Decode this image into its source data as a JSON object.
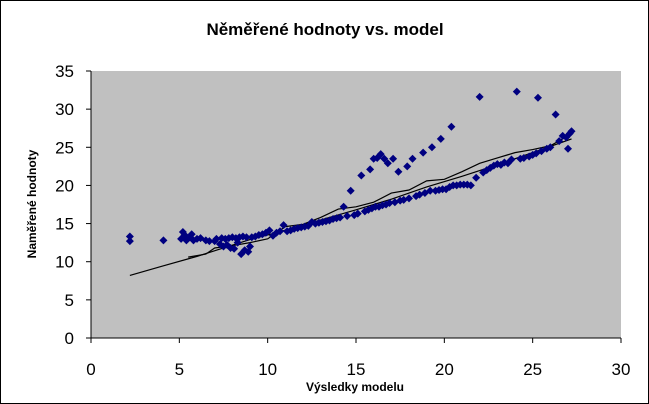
{
  "chart_data": {
    "type": "scatter",
    "title": "Něměřené hodnoty vs. model",
    "xlabel": "Výsledky modelu",
    "ylabel": "Naměřené hodnoty",
    "xlim": [
      0,
      30
    ],
    "ylim": [
      0,
      35
    ],
    "xticks": [
      0,
      5,
      10,
      15,
      20,
      25,
      30
    ],
    "yticks": [
      0,
      5,
      10,
      15,
      20,
      25,
      30,
      35
    ],
    "grid": false,
    "legend": "none",
    "plot_background": "#c0c0c0",
    "series": [
      {
        "type": "scatter",
        "marker": "diamond",
        "color": "#000080",
        "points": [
          [
            2.2,
            13.3
          ],
          [
            2.2,
            12.7
          ],
          [
            4.1,
            12.8
          ],
          [
            5.1,
            13.0
          ],
          [
            5.2,
            13.9
          ],
          [
            5.3,
            13.5
          ],
          [
            5.4,
            12.8
          ],
          [
            5.6,
            13.2
          ],
          [
            5.7,
            13.6
          ],
          [
            5.8,
            12.8
          ],
          [
            6.0,
            13.0
          ],
          [
            6.2,
            13.1
          ],
          [
            6.5,
            12.8
          ],
          [
            6.7,
            12.7
          ],
          [
            7.0,
            12.7
          ],
          [
            7.1,
            13.0
          ],
          [
            7.3,
            12.3
          ],
          [
            7.4,
            13.1
          ],
          [
            7.5,
            12.0
          ],
          [
            7.6,
            13.0
          ],
          [
            7.7,
            12.2
          ],
          [
            7.8,
            13.1
          ],
          [
            7.9,
            11.8
          ],
          [
            8.0,
            13.2
          ],
          [
            8.1,
            11.7
          ],
          [
            8.2,
            13.1
          ],
          [
            8.3,
            12.5
          ],
          [
            8.4,
            13.2
          ],
          [
            8.5,
            11.0
          ],
          [
            8.6,
            13.3
          ],
          [
            8.7,
            11.5
          ],
          [
            8.8,
            13.2
          ],
          [
            8.9,
            11.3
          ],
          [
            9.0,
            12.0
          ],
          [
            9.1,
            13.2
          ],
          [
            9.3,
            13.3
          ],
          [
            9.5,
            13.5
          ],
          [
            9.7,
            13.6
          ],
          [
            9.9,
            13.8
          ],
          [
            10.1,
            14.1
          ],
          [
            10.3,
            13.4
          ],
          [
            10.5,
            13.8
          ],
          [
            10.7,
            14.0
          ],
          [
            10.9,
            14.8
          ],
          [
            11.1,
            14.0
          ],
          [
            11.3,
            14.1
          ],
          [
            11.5,
            14.3
          ],
          [
            11.7,
            14.4
          ],
          [
            11.9,
            14.5
          ],
          [
            12.1,
            14.6
          ],
          [
            12.3,
            14.7
          ],
          [
            12.5,
            15.2
          ],
          [
            12.7,
            15.0
          ],
          [
            12.9,
            15.1
          ],
          [
            13.1,
            15.2
          ],
          [
            13.3,
            15.3
          ],
          [
            13.5,
            15.4
          ],
          [
            13.7,
            15.6
          ],
          [
            13.9,
            15.7
          ],
          [
            14.1,
            15.8
          ],
          [
            14.3,
            17.2
          ],
          [
            14.5,
            16.0
          ],
          [
            14.7,
            19.3
          ],
          [
            14.9,
            16.1
          ],
          [
            15.1,
            16.3
          ],
          [
            15.3,
            21.3
          ],
          [
            15.5,
            16.6
          ],
          [
            15.7,
            16.8
          ],
          [
            15.8,
            22.1
          ],
          [
            15.9,
            17.0
          ],
          [
            16.0,
            23.5
          ],
          [
            16.1,
            17.2
          ],
          [
            16.2,
            23.6
          ],
          [
            16.3,
            17.2
          ],
          [
            16.4,
            24.1
          ],
          [
            16.5,
            17.4
          ],
          [
            16.6,
            23.5
          ],
          [
            16.7,
            17.5
          ],
          [
            16.8,
            22.9
          ],
          [
            16.9,
            17.7
          ],
          [
            17.1,
            23.5
          ],
          [
            17.2,
            17.8
          ],
          [
            17.4,
            21.8
          ],
          [
            17.5,
            18.0
          ],
          [
            17.7,
            18.1
          ],
          [
            17.9,
            22.5
          ],
          [
            18.0,
            18.3
          ],
          [
            18.2,
            23.5
          ],
          [
            18.4,
            18.6
          ],
          [
            18.6,
            18.8
          ],
          [
            18.8,
            24.3
          ],
          [
            18.9,
            19.0
          ],
          [
            19.2,
            19.3
          ],
          [
            19.3,
            25.0
          ],
          [
            19.5,
            19.3
          ],
          [
            19.7,
            19.4
          ],
          [
            19.8,
            26.1
          ],
          [
            19.9,
            19.5
          ],
          [
            20.1,
            19.5
          ],
          [
            20.3,
            19.8
          ],
          [
            20.4,
            27.7
          ],
          [
            20.5,
            20.0
          ],
          [
            20.7,
            20.0
          ],
          [
            20.9,
            20.1
          ],
          [
            21.1,
            20.1
          ],
          [
            21.3,
            20.1
          ],
          [
            21.5,
            20.0
          ],
          [
            21.8,
            21.0
          ],
          [
            22.0,
            31.6
          ],
          [
            22.2,
            21.7
          ],
          [
            22.4,
            22.0
          ],
          [
            22.6,
            22.3
          ],
          [
            22.8,
            22.6
          ],
          [
            23.0,
            22.8
          ],
          [
            23.2,
            22.7
          ],
          [
            23.4,
            23.0
          ],
          [
            23.6,
            22.9
          ],
          [
            23.8,
            23.4
          ],
          [
            24.1,
            32.3
          ],
          [
            24.3,
            23.5
          ],
          [
            24.5,
            23.6
          ],
          [
            24.8,
            23.8
          ],
          [
            25.0,
            24.0
          ],
          [
            25.2,
            24.2
          ],
          [
            25.3,
            31.5
          ],
          [
            25.5,
            24.5
          ],
          [
            25.8,
            24.8
          ],
          [
            26.0,
            25.0
          ],
          [
            26.3,
            29.3
          ],
          [
            26.5,
            25.8
          ],
          [
            26.7,
            26.5
          ],
          [
            26.9,
            26.3
          ],
          [
            27.0,
            24.8
          ],
          [
            27.1,
            26.8
          ],
          [
            27.2,
            27.1
          ]
        ]
      },
      {
        "type": "line",
        "color": "#000000",
        "points": [
          [
            2.2,
            8.2
          ],
          [
            4.0,
            9.4
          ],
          [
            6.0,
            10.7
          ],
          [
            7.5,
            11.8
          ],
          [
            9.0,
            12.9
          ],
          [
            10.5,
            13.8
          ],
          [
            12.0,
            14.8
          ],
          [
            13.5,
            15.8
          ],
          [
            15.0,
            16.8
          ],
          [
            17.0,
            18.2
          ],
          [
            19.0,
            19.8
          ],
          [
            21.0,
            21.2
          ],
          [
            23.0,
            22.7
          ],
          [
            25.0,
            24.3
          ],
          [
            27.2,
            26.1
          ]
        ]
      },
      {
        "type": "line",
        "color": "#000000",
        "points": [
          [
            5.5,
            10.6
          ],
          [
            6.5,
            11.0
          ],
          [
            7.0,
            11.8
          ],
          [
            8.0,
            12.1
          ],
          [
            9.0,
            12.5
          ],
          [
            10.0,
            13.0
          ],
          [
            11.0,
            14.6
          ],
          [
            12.0,
            14.9
          ],
          [
            13.0,
            15.8
          ],
          [
            14.0,
            16.9
          ],
          [
            15.0,
            17.2
          ],
          [
            16.0,
            17.8
          ],
          [
            17.0,
            19.0
          ],
          [
            18.0,
            19.4
          ],
          [
            19.0,
            20.6
          ],
          [
            20.0,
            20.8
          ],
          [
            21.0,
            21.8
          ],
          [
            22.0,
            22.9
          ],
          [
            23.0,
            23.6
          ],
          [
            24.0,
            24.3
          ],
          [
            25.0,
            24.7
          ],
          [
            26.0,
            25.2
          ],
          [
            27.0,
            26.5
          ]
        ]
      }
    ]
  }
}
